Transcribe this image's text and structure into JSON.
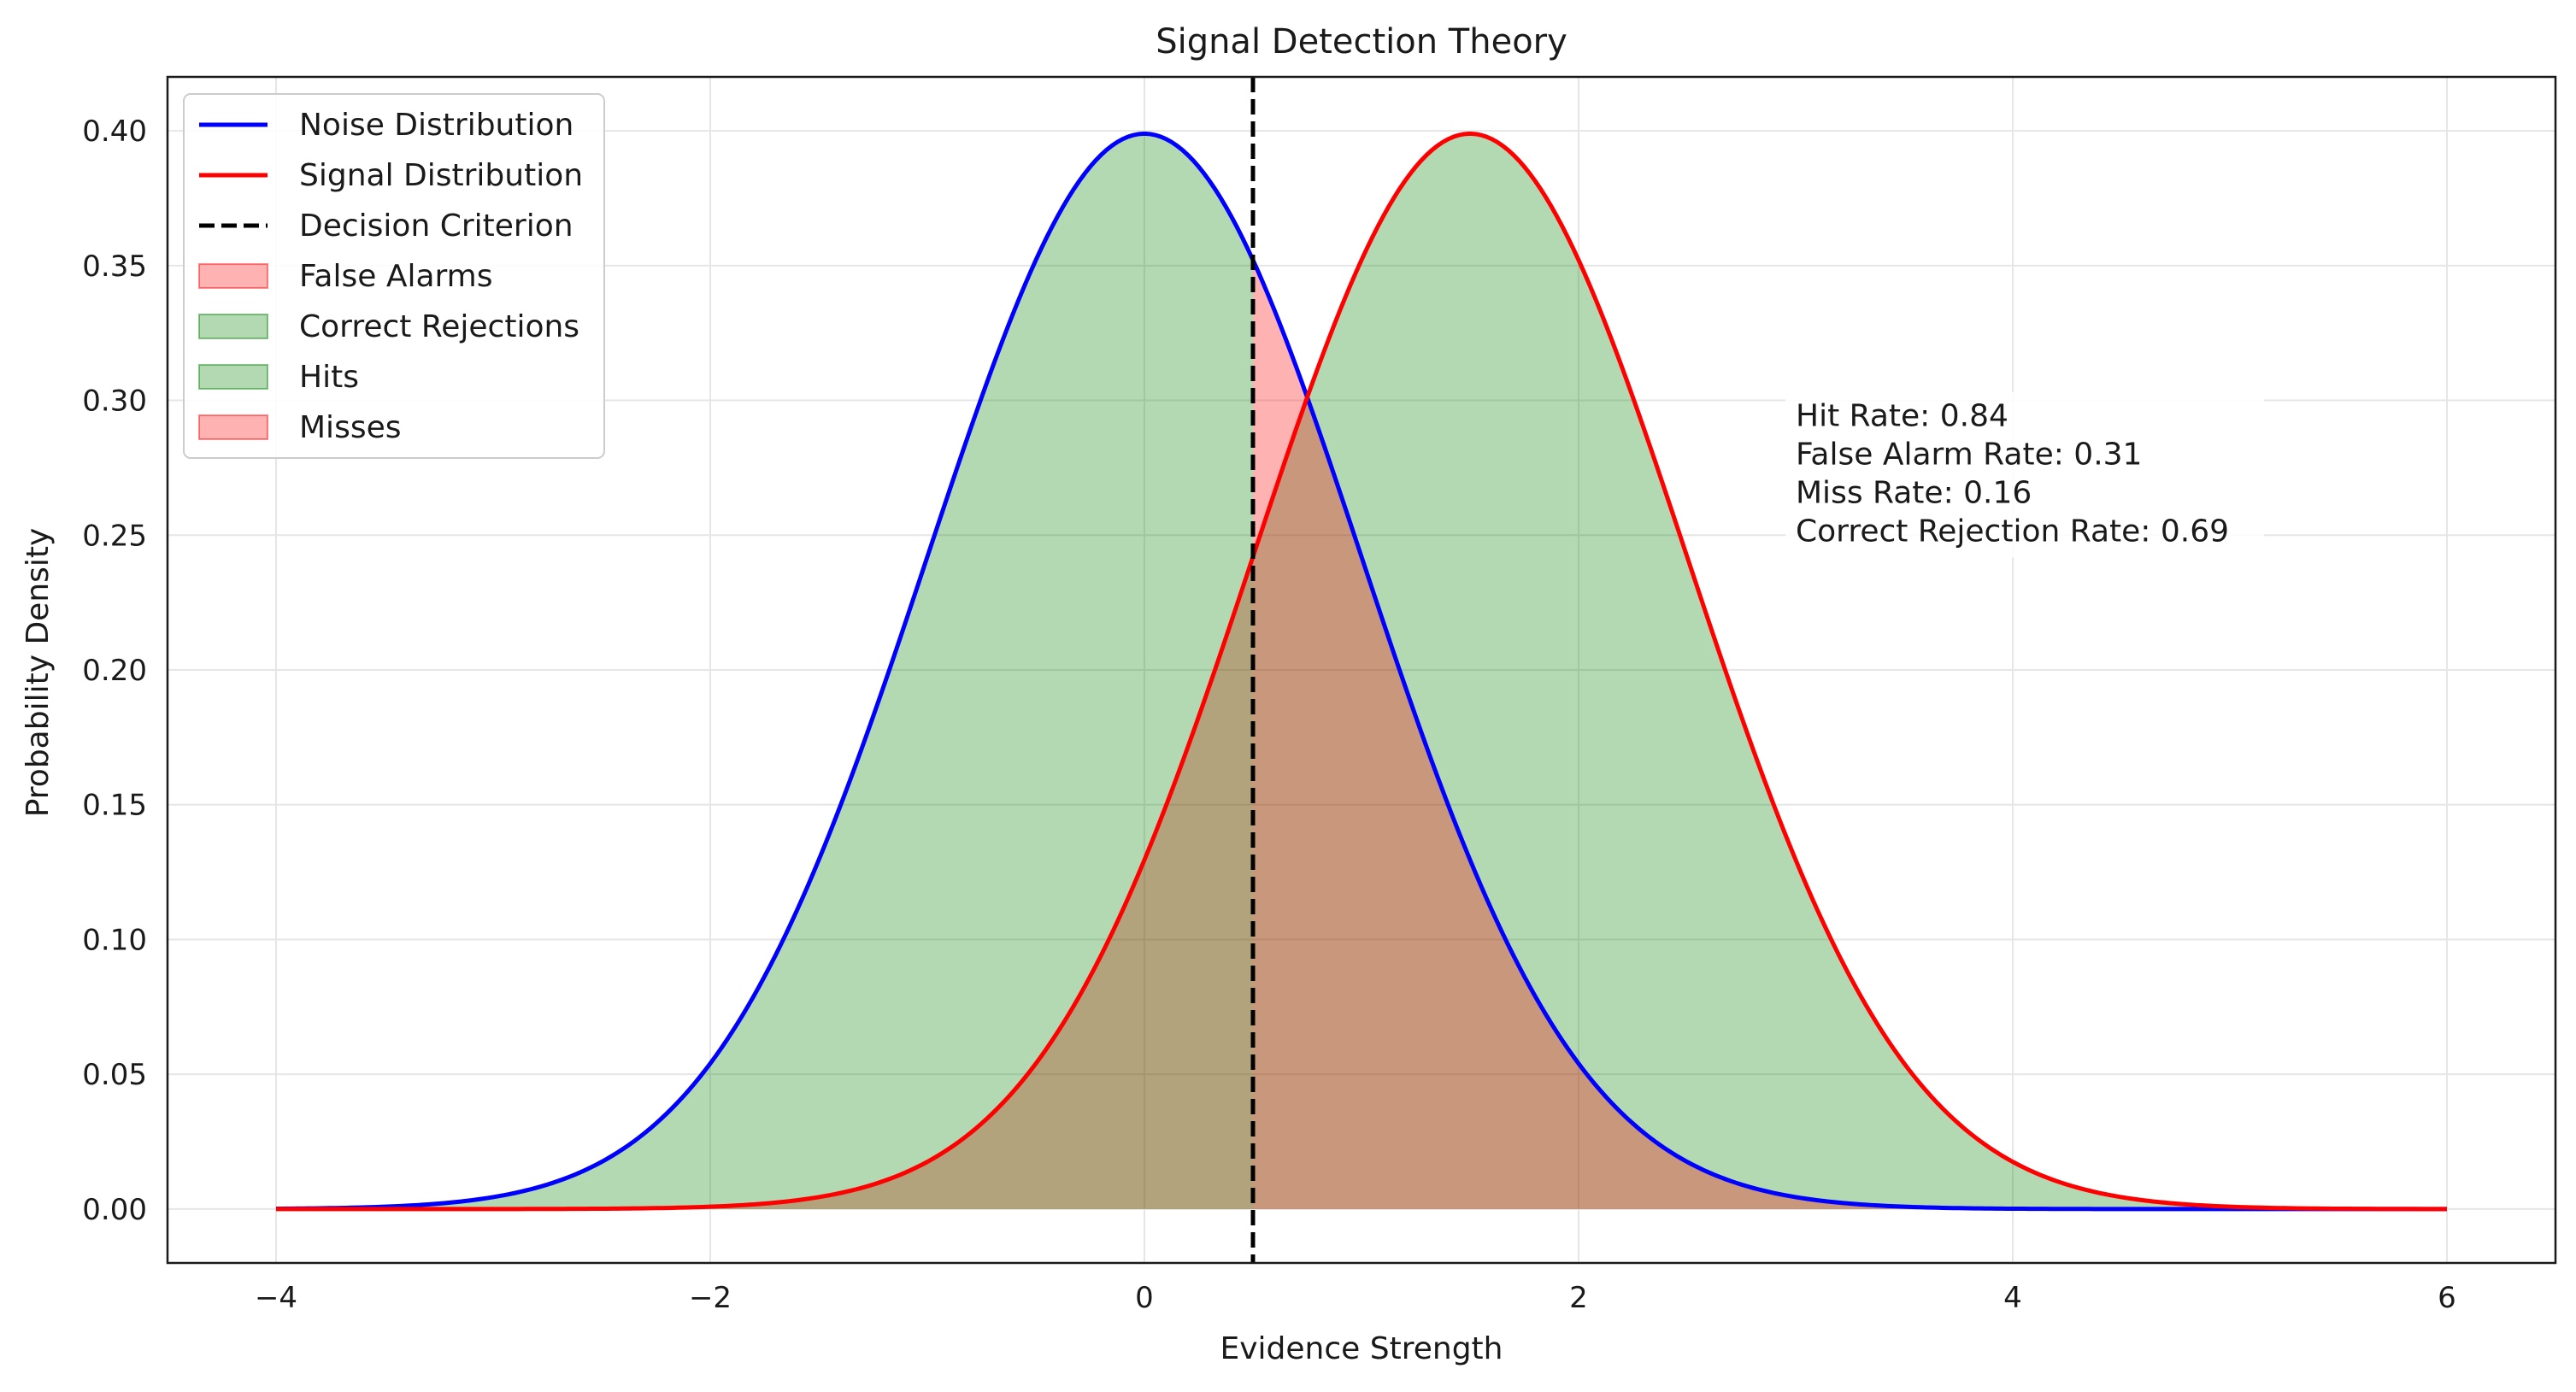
{
  "chart_data": {
    "type": "area",
    "title": "Signal Detection Theory",
    "xlabel": "Evidence Strength",
    "ylabel": "Probability Density",
    "xlim": [
      -4.5,
      6.5
    ],
    "ylim": [
      -0.02,
      0.42
    ],
    "xticks": [
      -4,
      -2,
      0,
      2,
      4,
      6
    ],
    "xtick_labels": [
      "−4",
      "−2",
      "0",
      "2",
      "4",
      "6"
    ],
    "yticks": [
      0.0,
      0.05,
      0.1,
      0.15,
      0.2,
      0.25,
      0.3,
      0.35,
      0.4
    ],
    "ytick_labels": [
      "0.00",
      "0.05",
      "0.10",
      "0.15",
      "0.20",
      "0.25",
      "0.30",
      "0.35",
      "0.40"
    ],
    "grid": true,
    "x_range": [
      -4,
      6
    ],
    "criterion": 0.5,
    "series": [
      {
        "name": "Noise Distribution",
        "kind": "line",
        "distribution": "normal",
        "mean": 0,
        "sd": 1,
        "color": "#0000ff"
      },
      {
        "name": "Signal Distribution",
        "kind": "line",
        "distribution": "normal",
        "mean": 1.5,
        "sd": 1,
        "color": "#ff0000"
      },
      {
        "name": "Decision Criterion",
        "kind": "vline",
        "x": 0.5,
        "color": "#000000",
        "dashed": true
      },
      {
        "name": "False Alarms",
        "kind": "fill",
        "of": "Noise Distribution",
        "region": "x >= criterion",
        "color": "#ff0000",
        "alpha": 0.3
      },
      {
        "name": "Correct Rejections",
        "kind": "fill",
        "of": "Noise Distribution",
        "region": "x <= criterion",
        "color": "#008000",
        "alpha": 0.3
      },
      {
        "name": "Hits",
        "kind": "fill",
        "of": "Signal Distribution",
        "region": "x >= criterion",
        "color": "#008000",
        "alpha": 0.3
      },
      {
        "name": "Misses",
        "kind": "fill",
        "of": "Signal Distribution",
        "region": "x <= criterion",
        "color": "#ff0000",
        "alpha": 0.3
      }
    ],
    "legend_position": "top-left",
    "annotation": {
      "lines": [
        "Hit Rate: 0.84",
        "False Alarm Rate: 0.31",
        "Miss Rate: 0.16",
        "Correct Rejection Rate: 0.69"
      ],
      "x": 3.0,
      "y": 0.3
    }
  }
}
